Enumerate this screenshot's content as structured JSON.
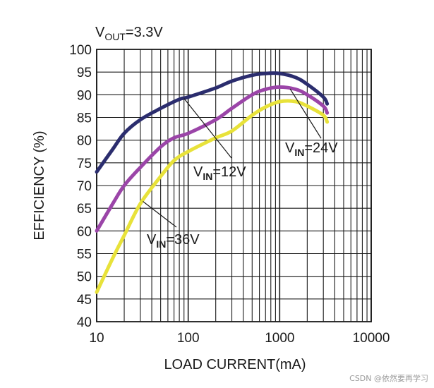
{
  "chart_data": {
    "type": "line",
    "title_main": "V",
    "title_sub": "OUT",
    "title_tail": "=3.3V",
    "xlabel": "LOAD CURRENT(mA)",
    "ylabel": "EFFICIENCY (%)",
    "xscale": "log",
    "xlim": [
      10,
      10000
    ],
    "ylim": [
      40,
      100
    ],
    "grid": true,
    "xticks": [
      "10",
      "100",
      "1000",
      "10000"
    ],
    "yticks": [
      "40",
      "45",
      "50",
      "55",
      "60",
      "65",
      "70",
      "75",
      "80",
      "85",
      "90",
      "95",
      "100"
    ],
    "series": [
      {
        "name": "VIN=12V",
        "label_main": "V",
        "label_sub": "IN",
        "label_tail": "=12V",
        "color": "#2b2d6e",
        "x": [
          10,
          15,
          20,
          30,
          50,
          80,
          100,
          200,
          300,
          500,
          700,
          1000,
          1500,
          2000,
          3000,
          3300
        ],
        "y": [
          73,
          78,
          81.5,
          84.5,
          87,
          89,
          89.5,
          91.5,
          93,
          94.3,
          94.7,
          94.7,
          93.8,
          92.3,
          89.5,
          88
        ]
      },
      {
        "name": "VIN=24V",
        "label_main": "V",
        "label_sub": "IN",
        "label_tail": "=24V",
        "color": "#9b45a8",
        "x": [
          10,
          15,
          20,
          30,
          50,
          70,
          100,
          200,
          300,
          500,
          700,
          1000,
          1500,
          2000,
          3000,
          3300
        ],
        "y": [
          60,
          66,
          70,
          74,
          78.5,
          80.5,
          81.5,
          84.5,
          87,
          90,
          91.2,
          91.7,
          91.2,
          90,
          87.5,
          86
        ]
      },
      {
        "name": "VIN=36V",
        "label_main": "V",
        "label_sub": "IN",
        "label_tail": "=36V",
        "color": "#e8e23a",
        "x": [
          10,
          15,
          20,
          30,
          50,
          70,
          100,
          200,
          300,
          500,
          700,
          1000,
          1500,
          2000,
          3000,
          3300
        ],
        "y": [
          46.5,
          54,
          59,
          66,
          72,
          75.5,
          77.5,
          80.5,
          82,
          85.5,
          87.3,
          88.5,
          88.5,
          87.5,
          85.5,
          84
        ]
      }
    ]
  },
  "watermark": "CSDN @依然要再学习"
}
